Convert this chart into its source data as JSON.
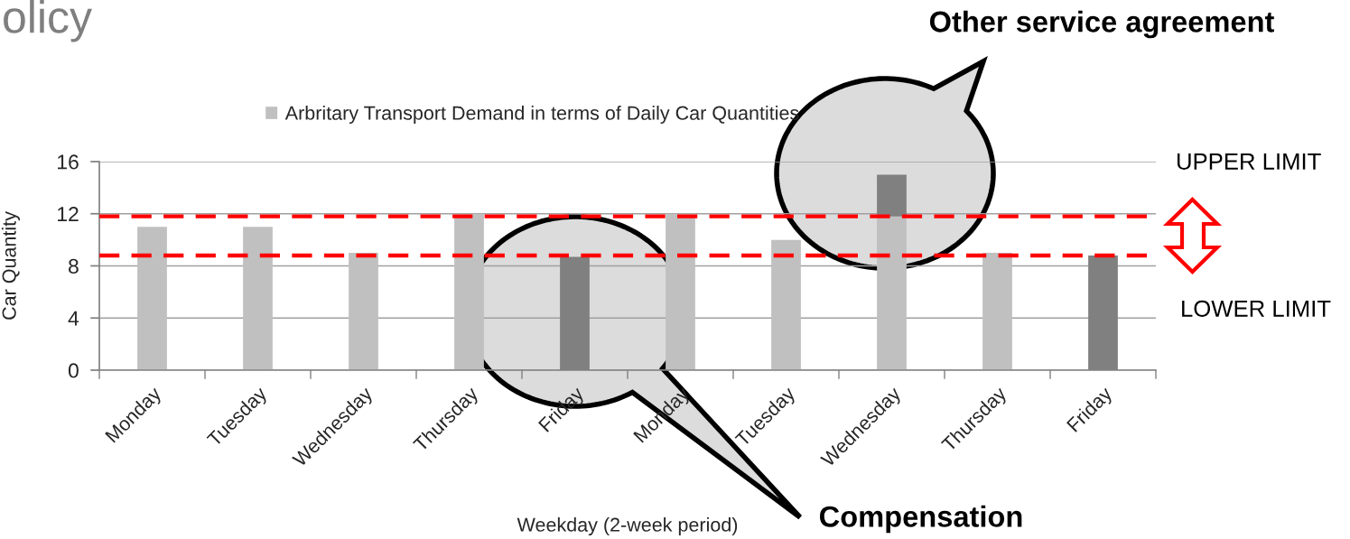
{
  "chart_data": {
    "type": "bar",
    "title": "olicy",
    "xlabel": "Weekday (2-week period)",
    "ylabel": "Car Quantity",
    "categories": [
      "Monday",
      "Tuesday",
      "Wednesday",
      "Thursday",
      "Friday",
      "Monday",
      "Tuesday",
      "Wednesday",
      "Thursday",
      "Friday"
    ],
    "series": [
      {
        "name": "Arbritary Transport Demand in terms of Daily Car Quantities",
        "color": "#c0c0c0",
        "values": [
          11,
          11,
          9,
          12,
          null,
          12,
          10,
          11.8,
          9,
          null
        ]
      },
      {
        "color": "#808080",
        "values": [
          null,
          null,
          null,
          null,
          8.7,
          null,
          null,
          3.2,
          null,
          8.8
        ]
      }
    ],
    "stacked": true,
    "ylim": [
      0,
      16
    ],
    "yticks": [
      0,
      4,
      8,
      12,
      16
    ],
    "grid": "y",
    "legend": "top",
    "ref_lines": [
      {
        "axis": "y",
        "value": 11.8,
        "color": "#ff0000",
        "line_style": "dashed"
      },
      {
        "axis": "y",
        "value": 8.8,
        "color": "#ff0000",
        "line_style": "dashed"
      }
    ],
    "annotations": [
      "Other service agreement",
      "Compensation",
      "UPPER LIMIT",
      "LOWER LIMIT"
    ]
  }
}
